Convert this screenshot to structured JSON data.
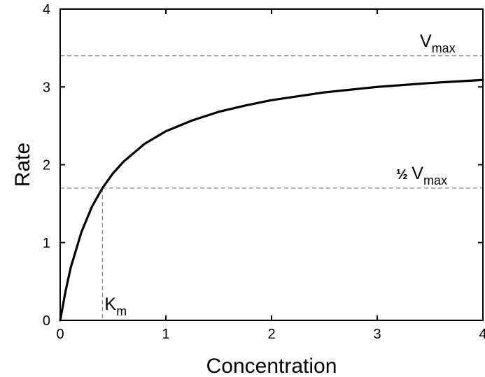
{
  "chart_data": {
    "type": "line",
    "xlabel": "Concentration",
    "ylabel": "Rate",
    "xlim": [
      0,
      4
    ],
    "ylim": [
      0,
      4
    ],
    "xticks": [
      "0",
      "1",
      "2",
      "3",
      "4"
    ],
    "yticks": [
      "0",
      "1",
      "2",
      "3",
      "4"
    ],
    "grid": false,
    "series": [
      {
        "x": [
          0,
          0.05,
          0.1,
          0.2,
          0.3,
          0.4,
          0.5,
          0.6,
          0.8,
          1.0,
          1.25,
          1.5,
          1.75,
          2.0,
          2.5,
          3.0,
          3.5,
          4.0
        ],
        "y": [
          0,
          0.37,
          0.68,
          1.13,
          1.46,
          1.7,
          1.89,
          2.04,
          2.27,
          2.43,
          2.57,
          2.68,
          2.76,
          2.83,
          2.93,
          3.0,
          3.05,
          3.09
        ],
        "color": "#000000"
      }
    ],
    "reference_lines": {
      "vmax": 3.4,
      "half_vmax": 1.7,
      "km": 0.4,
      "color": "#888888"
    },
    "annotations": {
      "vmax": {
        "main": "V",
        "sub": "max"
      },
      "half_vmax": {
        "prefix": "½ ",
        "main": "V",
        "sub": "max"
      },
      "km": {
        "main": "K",
        "sub": "m"
      }
    }
  }
}
